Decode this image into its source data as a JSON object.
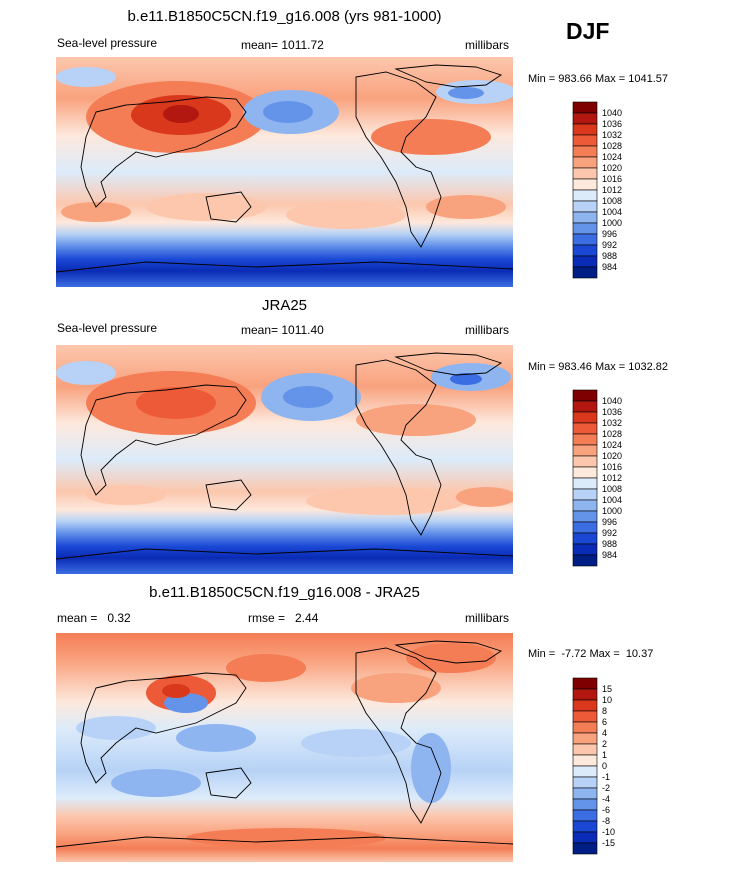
{
  "season": "DJF",
  "chart_data": [
    {
      "type": "heatmap",
      "title": "b.e11.B1850C5CN.f19_g16.008 (yrs 981-1000)",
      "left_label": "Sea-level pressure",
      "center_label": "mean= 1011.72",
      "right_label": "millibars",
      "min_max": "Min = 983.66 Max = 1041.57",
      "units": "millibars",
      "levels": [
        "1040",
        "1036",
        "1032",
        "1028",
        "1024",
        "1020",
        "1016",
        "1012",
        "1008",
        "1004",
        "1000",
        "996",
        "992",
        "988",
        "984"
      ],
      "colors": [
        "#7f0000",
        "#b2180f",
        "#d9381d",
        "#ec5a37",
        "#f47d55",
        "#f9a27e",
        "#fcc7ad",
        "#fde8dc",
        "#dcebfa",
        "#b7d2f6",
        "#8fb5f1",
        "#6493ea",
        "#3c6ee3",
        "#1a48d5",
        "#0a2bb5",
        "#001e84"
      ]
    },
    {
      "type": "heatmap",
      "title": "JRA25",
      "left_label": "Sea-level pressure",
      "center_label": "mean= 1011.40",
      "right_label": "millibars",
      "min_max": "Min = 983.46 Max = 1032.82",
      "units": "millibars",
      "levels": [
        "1040",
        "1036",
        "1032",
        "1028",
        "1024",
        "1020",
        "1016",
        "1012",
        "1008",
        "1004",
        "1000",
        "996",
        "992",
        "988",
        "984"
      ],
      "colors": [
        "#7f0000",
        "#b2180f",
        "#d9381d",
        "#ec5a37",
        "#f47d55",
        "#f9a27e",
        "#fcc7ad",
        "#fde8dc",
        "#dcebfa",
        "#b7d2f6",
        "#8fb5f1",
        "#6493ea",
        "#3c6ee3",
        "#1a48d5",
        "#0a2bb5",
        "#001e84"
      ]
    },
    {
      "type": "heatmap",
      "title": "b.e11.B1850C5CN.f19_g16.008 - JRA25",
      "left_label": "mean =   0.32",
      "center_label": "rmse =   2.44",
      "right_label": "millibars",
      "min_max": "Min =  -7.72 Max =  10.37",
      "units": "millibars",
      "levels": [
        "15",
        "10",
        "8",
        "6",
        "4",
        "2",
        "1",
        "0",
        "-1",
        "-2",
        "-4",
        "-6",
        "-8",
        "-10",
        "-15"
      ],
      "colors": [
        "#7f0000",
        "#b2180f",
        "#d9381d",
        "#ec5a37",
        "#f47d55",
        "#f9a27e",
        "#fcc7ad",
        "#fde8dc",
        "#dcebfa",
        "#b7d2f6",
        "#8fb5f1",
        "#6493ea",
        "#3c6ee3",
        "#1a48d5",
        "#0a2bb5",
        "#001e84"
      ]
    }
  ]
}
